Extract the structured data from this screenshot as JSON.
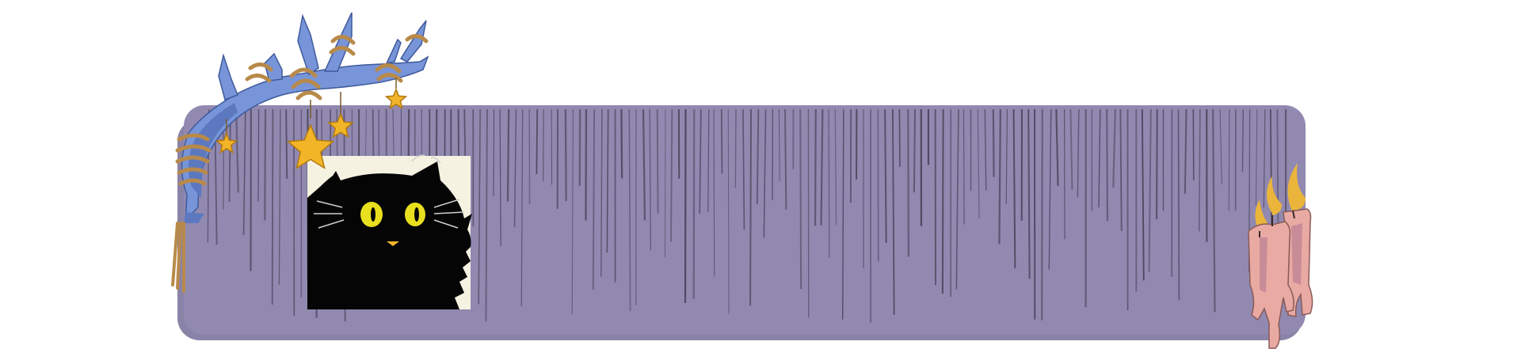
{
  "banner": {
    "background_color": "#ffffff",
    "panel_color": "#9189b0",
    "panel_shadow_color": "#8a83a8",
    "drip_color": "#4d465f",
    "cat_frame_color": "#f6f2e2",
    "cat_color": "#050505",
    "cat_eye_color": "#e8df1e",
    "branch_color": "#7795d8",
    "branch_shade_color": "#5c79c0",
    "rope_color": "#b88a4a",
    "star_color": "#f3b528",
    "candle_color": "#e8aaa2",
    "flame_color": "#eab53a"
  },
  "icons": {
    "branch": "tree-branch-icon",
    "stars": "hanging-star-icon",
    "cat": "black-cat-icon",
    "candles": "melting-candle-icon"
  }
}
